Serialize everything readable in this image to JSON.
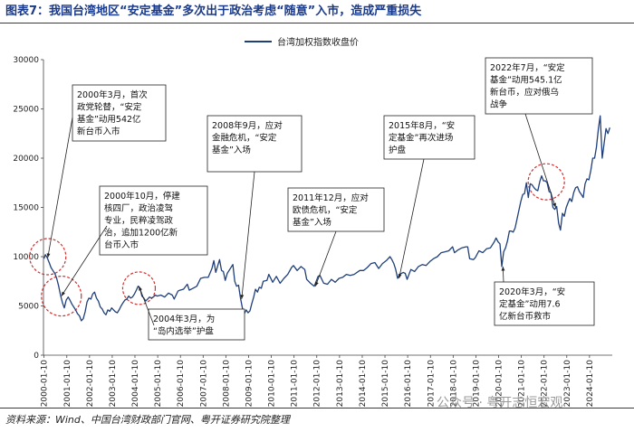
{
  "title": "图表7：我国台湾地区“安定基金”多次出于政治考虑“随意”入市，造成严重损失",
  "source": "资料来源：Wind、中国台湾财政部门官网、粤开证券研究院整理",
  "watermark": "公众号 · 粤开志恒宏观",
  "chart_data": {
    "type": "line",
    "series": [
      {
        "name": "台湾加权指数收盘价",
        "color": "#1f3f7a",
        "points": [
          [
            "2000-01-10",
            9800
          ],
          [
            "2000-02-01",
            10200
          ],
          [
            "2000-03-01",
            9900
          ],
          [
            "2000-04-01",
            9400
          ],
          [
            "2000-05-01",
            8900
          ],
          [
            "2000-06-01",
            8600
          ],
          [
            "2000-07-01",
            8300
          ],
          [
            "2000-08-01",
            7800
          ],
          [
            "2000-09-01",
            7000
          ],
          [
            "2000-10-01",
            6100
          ],
          [
            "2000-11-01",
            5300
          ],
          [
            "2000-12-01",
            4800
          ],
          [
            "2001-01-01",
            5600
          ],
          [
            "2001-02-01",
            5900
          ],
          [
            "2001-03-01",
            5600
          ],
          [
            "2001-04-01",
            5200
          ],
          [
            "2001-05-01",
            4900
          ],
          [
            "2001-06-01",
            4600
          ],
          [
            "2001-07-01",
            4200
          ],
          [
            "2001-08-01",
            4000
          ],
          [
            "2001-09-01",
            3500
          ],
          [
            "2001-10-01",
            3700
          ],
          [
            "2001-11-01",
            4400
          ],
          [
            "2001-12-01",
            5400
          ],
          [
            "2002-01-01",
            5800
          ],
          [
            "2002-02-01",
            5700
          ],
          [
            "2002-03-01",
            6200
          ],
          [
            "2002-04-01",
            6400
          ],
          [
            "2002-05-01",
            5800
          ],
          [
            "2002-06-01",
            5500
          ],
          [
            "2002-07-01",
            4900
          ],
          [
            "2002-08-01",
            4700
          ],
          [
            "2002-09-01",
            4300
          ],
          [
            "2002-10-01",
            4100
          ],
          [
            "2002-11-01",
            4600
          ],
          [
            "2002-12-01",
            4450
          ],
          [
            "2003-01-01",
            4800
          ],
          [
            "2003-02-01",
            4600
          ],
          [
            "2003-03-01",
            4400
          ],
          [
            "2003-04-01",
            4300
          ],
          [
            "2003-05-01",
            4600
          ],
          [
            "2003-06-01",
            5000
          ],
          [
            "2003-07-01",
            5300
          ],
          [
            "2003-08-01",
            5600
          ],
          [
            "2003-09-01",
            5700
          ],
          [
            "2003-10-01",
            6000
          ],
          [
            "2003-11-01",
            5800
          ],
          [
            "2003-12-01",
            5900
          ],
          [
            "2004-01-01",
            6200
          ],
          [
            "2004-02-01",
            6600
          ],
          [
            "2004-03-01",
            7000
          ],
          [
            "2004-04-01",
            6800
          ],
          [
            "2004-05-01",
            6000
          ],
          [
            "2004-06-01",
            5800
          ],
          [
            "2004-07-01",
            5500
          ],
          [
            "2004-08-01",
            5700
          ],
          [
            "2004-09-01",
            5900
          ],
          [
            "2004-10-01",
            5800
          ],
          [
            "2004-11-01",
            5900
          ],
          [
            "2004-12-01",
            6100
          ],
          [
            "2005-01-01",
            6000
          ],
          [
            "2005-03-01",
            6100
          ],
          [
            "2005-05-01",
            5900
          ],
          [
            "2005-07-01",
            6300
          ],
          [
            "2005-09-01",
            6100
          ],
          [
            "2005-10-01",
            5700
          ],
          [
            "2005-12-01",
            6500
          ],
          [
            "2006-01-01",
            6600
          ],
          [
            "2006-03-01",
            6700
          ],
          [
            "2006-05-01",
            7200
          ],
          [
            "2006-06-01",
            6600
          ],
          [
            "2006-08-01",
            6800
          ],
          [
            "2006-10-01",
            7000
          ],
          [
            "2006-12-01",
            7800
          ],
          [
            "2007-02-01",
            7900
          ],
          [
            "2007-04-01",
            7900
          ],
          [
            "2007-06-01",
            8800
          ],
          [
            "2007-07-01",
            9600
          ],
          [
            "2007-08-01",
            8400
          ],
          [
            "2007-10-01",
            9700
          ],
          [
            "2007-11-01",
            8600
          ],
          [
            "2007-12-01",
            8500
          ],
          [
            "2008-01-01",
            7600
          ],
          [
            "2008-02-01",
            8300
          ],
          [
            "2008-03-01",
            8600
          ],
          [
            "2008-05-01",
            9200
          ],
          [
            "2008-06-01",
            7500
          ],
          [
            "2008-07-01",
            7000
          ],
          [
            "2008-08-01",
            7100
          ],
          [
            "2008-09-01",
            5800
          ],
          [
            "2008-10-01",
            4800
          ],
          [
            "2008-11-01",
            4200
          ],
          [
            "2008-12-01",
            4600
          ],
          [
            "2009-01-01",
            4300
          ],
          [
            "2009-02-01",
            4500
          ],
          [
            "2009-03-01",
            5200
          ],
          [
            "2009-04-01",
            5900
          ],
          [
            "2009-05-01",
            6700
          ],
          [
            "2009-06-01",
            6400
          ],
          [
            "2009-07-01",
            6900
          ],
          [
            "2009-08-01",
            6800
          ],
          [
            "2009-09-01",
            7500
          ],
          [
            "2009-11-01",
            7600
          ],
          [
            "2009-12-01",
            8200
          ],
          [
            "2010-02-01",
            7400
          ],
          [
            "2010-04-01",
            8000
          ],
          [
            "2010-06-01",
            7300
          ],
          [
            "2010-08-01",
            7800
          ],
          [
            "2010-10-01",
            8200
          ],
          [
            "2010-12-01",
            8900
          ],
          [
            "2011-01-01",
            9100
          ],
          [
            "2011-03-01",
            8600
          ],
          [
            "2011-05-01",
            9000
          ],
          [
            "2011-07-01",
            8700
          ],
          [
            "2011-08-01",
            7700
          ],
          [
            "2011-10-01",
            7300
          ],
          [
            "2011-12-01",
            7000
          ],
          [
            "2012-02-01",
            8000
          ],
          [
            "2012-03-01",
            8100
          ],
          [
            "2012-05-01",
            7300
          ],
          [
            "2012-07-01",
            7200
          ],
          [
            "2012-09-01",
            7700
          ],
          [
            "2012-11-01",
            7400
          ],
          [
            "2013-01-01",
            7800
          ],
          [
            "2013-03-01",
            7900
          ],
          [
            "2013-05-01",
            8200
          ],
          [
            "2013-07-01",
            8100
          ],
          [
            "2013-09-01",
            8200
          ],
          [
            "2013-12-01",
            8600
          ],
          [
            "2014-02-01",
            8600
          ],
          [
            "2014-04-01",
            8900
          ],
          [
            "2014-06-01",
            9300
          ],
          [
            "2014-08-01",
            9400
          ],
          [
            "2014-10-01",
            8800
          ],
          [
            "2014-12-01",
            9300
          ],
          [
            "2015-02-01",
            9600
          ],
          [
            "2015-04-01",
            10000
          ],
          [
            "2015-05-01",
            9700
          ],
          [
            "2015-06-01",
            9300
          ],
          [
            "2015-07-01",
            8700
          ],
          [
            "2015-08-01",
            7800
          ],
          [
            "2015-09-01",
            8200
          ],
          [
            "2015-11-01",
            8400
          ],
          [
            "2015-12-01",
            8300
          ],
          [
            "2016-01-01",
            7700
          ],
          [
            "2016-03-01",
            8700
          ],
          [
            "2016-05-01",
            8500
          ],
          [
            "2016-07-01",
            9000
          ],
          [
            "2016-09-01",
            9200
          ],
          [
            "2016-11-01",
            9100
          ],
          [
            "2017-01-01",
            9500
          ],
          [
            "2017-03-01",
            9800
          ],
          [
            "2017-05-01",
            10000
          ],
          [
            "2017-07-01",
            10400
          ],
          [
            "2017-09-01",
            10500
          ],
          [
            "2017-11-01",
            10600
          ],
          [
            "2018-01-01",
            11000
          ],
          [
            "2018-02-01",
            10400
          ],
          [
            "2018-04-01",
            10700
          ],
          [
            "2018-06-01",
            10900
          ],
          [
            "2018-08-01",
            11000
          ],
          [
            "2018-09-01",
            11000
          ],
          [
            "2018-10-01",
            9800
          ],
          [
            "2018-12-01",
            9700
          ],
          [
            "2019-01-01",
            9900
          ],
          [
            "2019-03-01",
            10600
          ],
          [
            "2019-05-01",
            10400
          ],
          [
            "2019-07-01",
            10800
          ],
          [
            "2019-09-01",
            10900
          ],
          [
            "2019-11-01",
            11500
          ],
          [
            "2019-12-01",
            11900
          ],
          [
            "2020-01-01",
            11500
          ],
          [
            "2020-02-01",
            11300
          ],
          [
            "2020-03-01",
            9000
          ],
          [
            "2020-04-01",
            10500
          ],
          [
            "2020-05-01",
            10900
          ],
          [
            "2020-06-01",
            11600
          ],
          [
            "2020-07-01",
            12600
          ],
          [
            "2020-08-01",
            12600
          ],
          [
            "2020-09-01",
            12500
          ],
          [
            "2020-10-01",
            12900
          ],
          [
            "2020-11-01",
            13800
          ],
          [
            "2020-12-01",
            14700
          ],
          [
            "2021-01-01",
            15600
          ],
          [
            "2021-02-01",
            16300
          ],
          [
            "2021-03-01",
            16400
          ],
          [
            "2021-04-01",
            17500
          ],
          [
            "2021-05-01",
            16000
          ],
          [
            "2021-06-01",
            17400
          ],
          [
            "2021-07-01",
            17300
          ],
          [
            "2021-08-01",
            17000
          ],
          [
            "2021-09-01",
            16800
          ],
          [
            "2021-10-01",
            16700
          ],
          [
            "2021-11-01",
            17600
          ],
          [
            "2021-12-01",
            18200
          ],
          [
            "2022-01-01",
            17700
          ],
          [
            "2022-02-01",
            17700
          ],
          [
            "2022-03-01",
            17500
          ],
          [
            "2022-04-01",
            16600
          ],
          [
            "2022-05-01",
            16500
          ],
          [
            "2022-06-01",
            15000
          ],
          [
            "2022-07-01",
            14800
          ],
          [
            "2022-08-01",
            15100
          ],
          [
            "2022-09-01",
            13400
          ],
          [
            "2022-10-01",
            12700
          ],
          [
            "2022-11-01",
            14400
          ],
          [
            "2022-12-01",
            14100
          ],
          [
            "2023-01-01",
            15000
          ],
          [
            "2023-02-01",
            15500
          ],
          [
            "2023-03-01",
            15900
          ],
          [
            "2023-04-01",
            15600
          ],
          [
            "2023-05-01",
            16500
          ],
          [
            "2023-06-01",
            17000
          ],
          [
            "2023-07-01",
            17100
          ],
          [
            "2023-08-01",
            16600
          ],
          [
            "2023-09-01",
            16300
          ],
          [
            "2023-10-01",
            16000
          ],
          [
            "2023-11-01",
            17400
          ],
          [
            "2023-12-01",
            17900
          ],
          [
            "2024-01-01",
            17800
          ],
          [
            "2024-02-01",
            18800
          ],
          [
            "2024-03-01",
            20000
          ],
          [
            "2024-04-01",
            20000
          ],
          [
            "2024-05-01",
            21100
          ],
          [
            "2024-06-01",
            23000
          ],
          [
            "2024-07-01",
            24300
          ],
          [
            "2024-08-01",
            20000
          ],
          [
            "2024-09-01",
            21500
          ],
          [
            "2024-10-01",
            23000
          ],
          [
            "2024-11-01",
            22500
          ],
          [
            "2024-12-01",
            23100
          ]
        ]
      }
    ],
    "ylim": [
      0,
      30000
    ],
    "yticks": [
      "0",
      "5000",
      "10000",
      "15000",
      "20000",
      "25000",
      "30000"
    ],
    "xticks": [
      "2000-01-10",
      "2001-01-10",
      "2002-01-10",
      "2003-01-10",
      "2004-01-10",
      "2005-01-10",
      "2006-01-10",
      "2007-01-10",
      "2008-01-10",
      "2009-01-10",
      "2010-01-10",
      "2011-01-10",
      "2012-01-10",
      "2013-01-10",
      "2014-01-10",
      "2015-01-10",
      "2016-01-10",
      "2017-01-10",
      "2018-01-10",
      "2019-01-10",
      "2020-01-10",
      "2021-01-10",
      "2022-01-10",
      "2023-01-10",
      "2024-01-10"
    ],
    "legend_position": "top-center",
    "grid": false,
    "annotations": [
      {
        "lines": [
          "2000年3月，首次",
          "政党轮替，“安定",
          "基金”动用542亿",
          "新台币入市"
        ],
        "date": "2000-03-10",
        "value": 9900
      },
      {
        "lines": [
          "2000年10月，停建",
          "核四厂，政治凌驾",
          "专业，民粹凌驾政",
          "治，追加1200亿新",
          "台币入市"
        ],
        "date": "2000-10-15",
        "value": 6000
      },
      {
        "lines": [
          "2004年3月，为",
          "“岛内选举”护盘"
        ],
        "date": "2004-03-15",
        "value": 7000
      },
      {
        "lines": [
          "2008年9月，应对",
          "金融危机，“安定",
          "基金”入场"
        ],
        "date": "2008-09-20",
        "value": 5700
      },
      {
        "lines": [
          "2011年12月，应对",
          "欧债危机，“安定",
          "基金”入场"
        ],
        "date": "2011-12-20",
        "value": 7000
      },
      {
        "lines": [
          "2015年8月，“安",
          "定基金”再次进场",
          "护盘"
        ],
        "date": "2015-08-25",
        "value": 7800
      },
      {
        "lines": [
          "2020年3月，“安",
          "定基金”动用7.6",
          "亿新台币救市"
        ],
        "date": "2020-03-20",
        "value": 9000
      },
      {
        "lines": [
          "2022年7月，“安定",
          "基金”动用545.1亿",
          "新台币，应对俄乌",
          "战争"
        ],
        "date": "2022-07-15",
        "value": 15000
      }
    ],
    "highlights": [
      {
        "date": "2000-03-10",
        "value": 10000
      },
      {
        "date": "2000-10-15",
        "value": 6000
      },
      {
        "date": "2004-03-15",
        "value": 6800
      },
      {
        "date": "2022-02-15",
        "value": 17600
      }
    ]
  }
}
